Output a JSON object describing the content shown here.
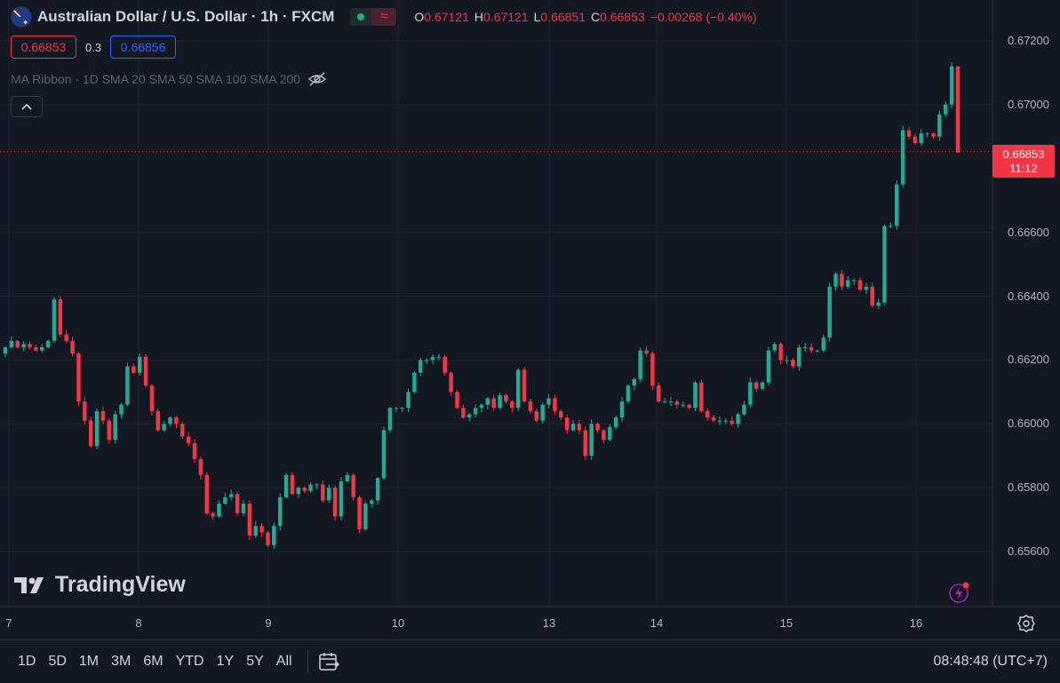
{
  "header": {
    "title": "Australian Dollar / U.S. Dollar · 1h · FXCM",
    "ohlc": [
      {
        "k": "O",
        "v": "0.67121"
      },
      {
        "k": "H",
        "v": "0.67121"
      },
      {
        "k": "L",
        "v": "0.66851"
      },
      {
        "k": "C",
        "v": "0.66853"
      }
    ],
    "change": "−0.00268 (−0.40%)"
  },
  "quote": {
    "bid": "0.66853",
    "spread": "0.3",
    "ask": "0.66856"
  },
  "indicator": {
    "label": "MA Ribbon · 1D SMA 20 SMA 50 SMA 100 SMA 200"
  },
  "price_tag": {
    "price": "0.66853",
    "countdown": "11:12"
  },
  "logo": {
    "text": "TradingView"
  },
  "ranges": [
    "1D",
    "5D",
    "1M",
    "3M",
    "6M",
    "YTD",
    "1Y",
    "5Y",
    "All"
  ],
  "clock": "08:48:48 (UTC+7)",
  "colors": {
    "up": "#22ab94",
    "down": "#f23645",
    "background": "#131722",
    "grid": "#1e222d"
  },
  "chart_data": {
    "type": "candlestick",
    "interval": "1h",
    "y_ticks": [
      "0.67200",
      "0.67000",
      "0.66600",
      "0.66400",
      "0.66200",
      "0.66000",
      "0.65800",
      "0.65600"
    ],
    "x_ticks": [
      "7",
      "8",
      "9",
      "10",
      "13",
      "14",
      "15",
      "16"
    ],
    "current_price": 0.66853,
    "closes": [
      0.6624,
      0.6626,
      0.6624,
      0.6625,
      0.6624,
      0.6623,
      0.6624,
      0.6626,
      0.6639,
      0.6628,
      0.6626,
      0.6622,
      0.6607,
      0.6601,
      0.6593,
      0.6604,
      0.6601,
      0.6595,
      0.6603,
      0.6606,
      0.6618,
      0.6616,
      0.6621,
      0.6612,
      0.6604,
      0.6598,
      0.66,
      0.6602,
      0.66,
      0.6596,
      0.6594,
      0.6589,
      0.6584,
      0.6572,
      0.6571,
      0.6575,
      0.6577,
      0.6578,
      0.6572,
      0.6575,
      0.6565,
      0.6568,
      0.6566,
      0.6562,
      0.6568,
      0.6577,
      0.6584,
      0.6578,
      0.658,
      0.6579,
      0.6581,
      0.6581,
      0.6576,
      0.658,
      0.6571,
      0.6582,
      0.6584,
      0.6577,
      0.6567,
      0.6575,
      0.6576,
      0.6583,
      0.6598,
      0.6605,
      0.6605,
      0.6605,
      0.661,
      0.6616,
      0.662,
      0.662,
      0.6621,
      0.6621,
      0.6616,
      0.661,
      0.6605,
      0.6602,
      0.6603,
      0.6605,
      0.6606,
      0.6608,
      0.6605,
      0.6609,
      0.6607,
      0.6605,
      0.6617,
      0.6607,
      0.6604,
      0.6601,
      0.6606,
      0.6608,
      0.6604,
      0.6602,
      0.6598,
      0.66,
      0.6598,
      0.659,
      0.66,
      0.6598,
      0.6595,
      0.6599,
      0.6602,
      0.6607,
      0.6612,
      0.6614,
      0.6623,
      0.6622,
      0.6612,
      0.6607,
      0.6607,
      0.6607,
      0.6606,
      0.6606,
      0.6605,
      0.6613,
      0.6604,
      0.6602,
      0.6601,
      0.6601,
      0.6601,
      0.66,
      0.6603,
      0.6606,
      0.6613,
      0.6611,
      0.6613,
      0.6623,
      0.6625,
      0.662,
      0.662,
      0.6618,
      0.6624,
      0.6624,
      0.6623,
      0.6623,
      0.6627,
      0.6643,
      0.6647,
      0.6643,
      0.6645,
      0.6645,
      0.6642,
      0.6643,
      0.6637,
      0.6638,
      0.6662,
      0.6662,
      0.6675,
      0.6692,
      0.669,
      0.6688,
      0.6691,
      0.6691,
      0.669,
      0.6697,
      0.67,
      0.6712,
      0.6685
    ]
  }
}
